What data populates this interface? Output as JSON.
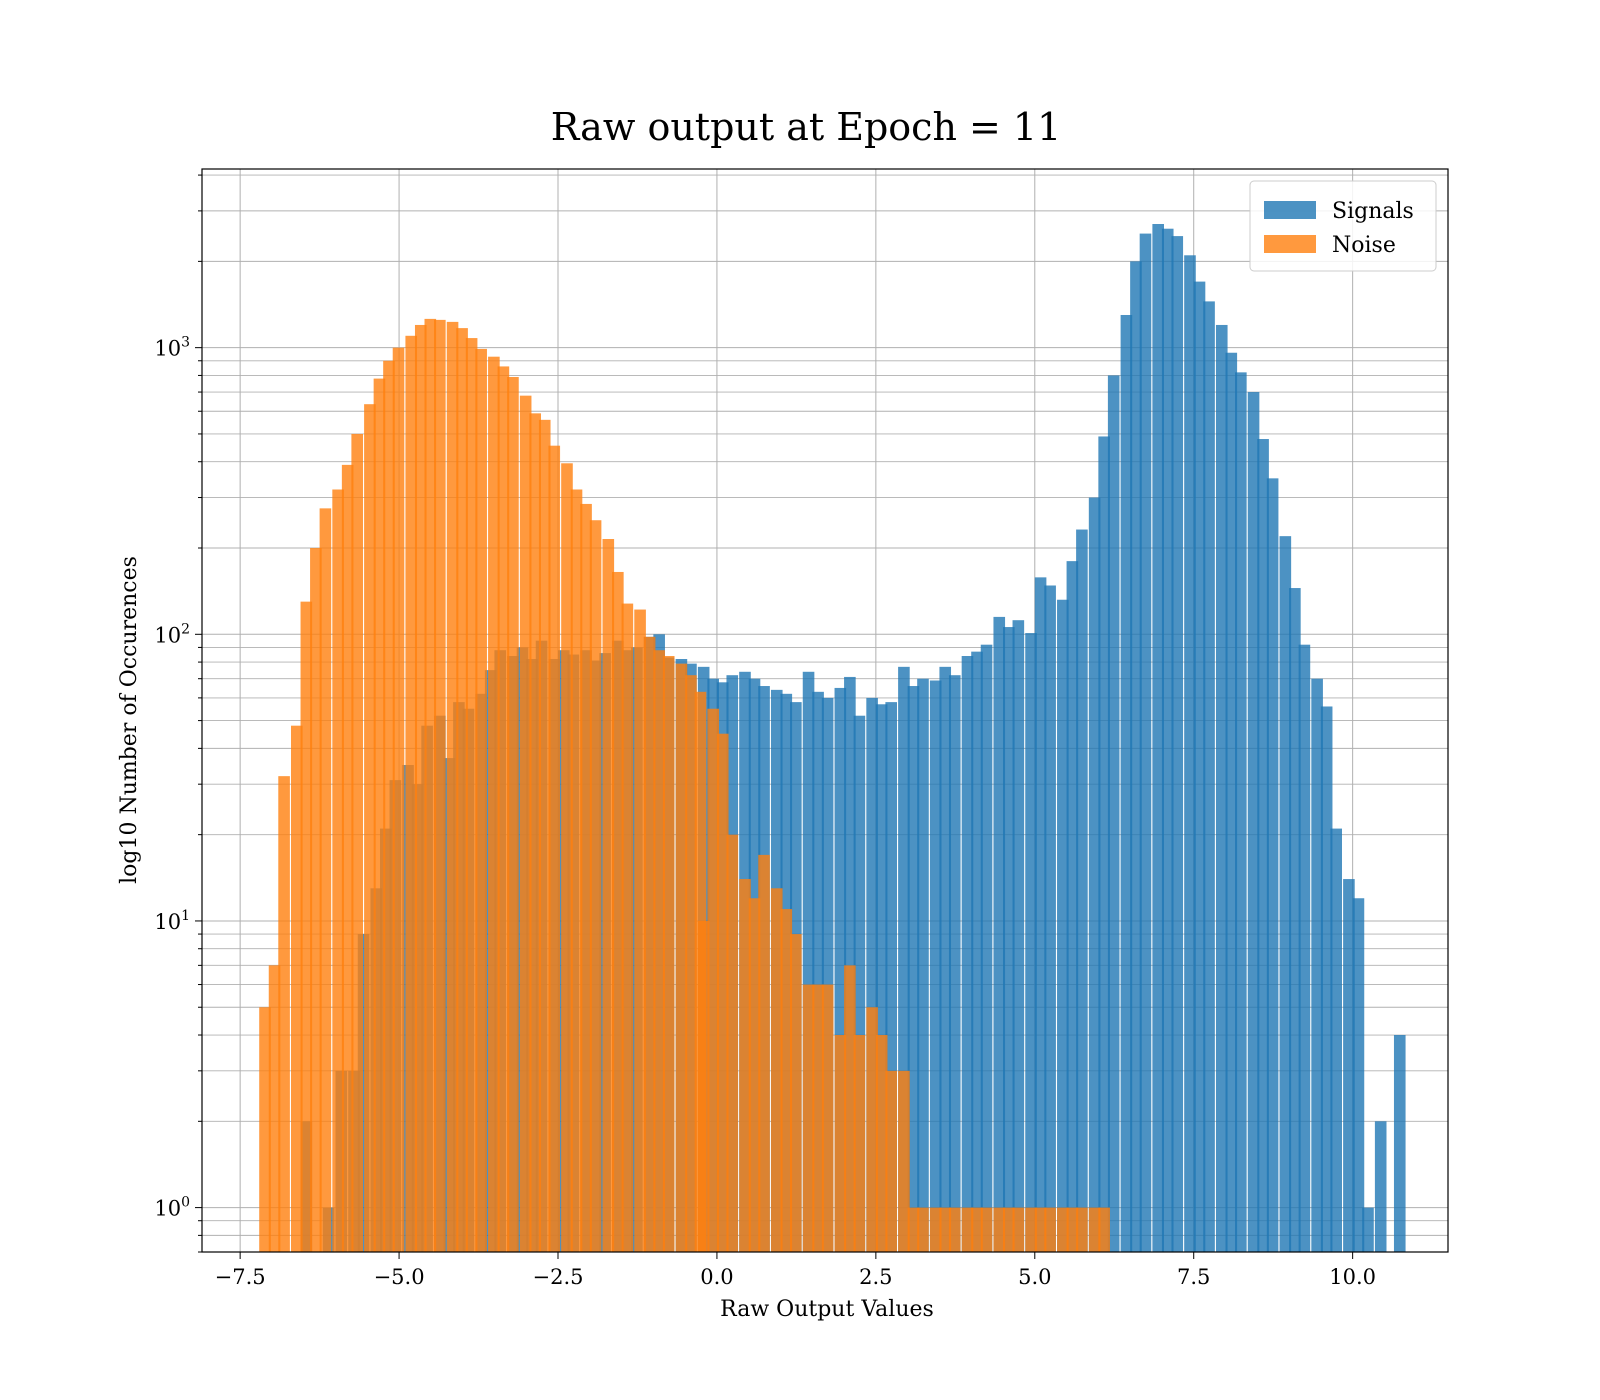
{
  "chart_data": {
    "type": "bar",
    "title": "Raw output at Epoch = 11",
    "xlabel": "Raw Output Values",
    "ylabel": "log10 Number of Occurences",
    "xlim": [
      -8.1,
      11.5
    ],
    "ylim": [
      0.7,
      4200
    ],
    "y_scale": "log",
    "grid": true,
    "legend_position": "top-right",
    "bin_width": 0.1825,
    "x_ticks": [
      {
        "value": -7.5,
        "label": "−7.5"
      },
      {
        "value": -5.0,
        "label": "−5.0"
      },
      {
        "value": -2.5,
        "label": "−2.5"
      },
      {
        "value": 0.0,
        "label": "0.0"
      },
      {
        "value": 2.5,
        "label": "2.5"
      },
      {
        "value": 5.0,
        "label": "5.0"
      },
      {
        "value": 7.5,
        "label": "7.5"
      },
      {
        "value": 10.0,
        "label": "10.0"
      }
    ],
    "y_ticks": [
      {
        "value": 1,
        "base": "10",
        "exp": "0"
      },
      {
        "value": 10,
        "base": "10",
        "exp": "1"
      },
      {
        "value": 100,
        "base": "10",
        "exp": "2"
      },
      {
        "value": 1000,
        "base": "10",
        "exp": "3"
      }
    ],
    "series": [
      {
        "name": "Signals",
        "color": "#1f77b4",
        "opacity": 0.8,
        "bins": [
          [
            -6.55,
            2
          ],
          [
            -6.2,
            1
          ],
          [
            -6.0,
            3
          ],
          [
            -5.8,
            3
          ],
          [
            -5.65,
            9
          ],
          [
            -5.45,
            13
          ],
          [
            -5.3,
            21
          ],
          [
            -5.15,
            31
          ],
          [
            -4.95,
            35
          ],
          [
            -4.8,
            30
          ],
          [
            -4.65,
            48
          ],
          [
            -4.45,
            52
          ],
          [
            -4.3,
            37
          ],
          [
            -4.15,
            58
          ],
          [
            -4.0,
            55
          ],
          [
            -3.8,
            62
          ],
          [
            -3.65,
            75
          ],
          [
            -3.5,
            88
          ],
          [
            -3.3,
            84
          ],
          [
            -3.15,
            90
          ],
          [
            -3.0,
            82
          ],
          [
            -2.85,
            95
          ],
          [
            -2.65,
            82
          ],
          [
            -2.5,
            88
          ],
          [
            -2.35,
            85
          ],
          [
            -2.15,
            88
          ],
          [
            -2.0,
            81
          ],
          [
            -1.85,
            86
          ],
          [
            -1.65,
            95
          ],
          [
            -1.5,
            88
          ],
          [
            -1.35,
            90
          ],
          [
            -1.15,
            98
          ],
          [
            -1.0,
            100
          ],
          [
            -0.85,
            83
          ],
          [
            -0.65,
            82
          ],
          [
            -0.5,
            79
          ],
          [
            -0.3,
            77
          ],
          [
            -0.15,
            70
          ],
          [
            0.0,
            68
          ],
          [
            0.15,
            72
          ],
          [
            0.35,
            74
          ],
          [
            0.5,
            70
          ],
          [
            0.65,
            66
          ],
          [
            0.85,
            64
          ],
          [
            1.0,
            62
          ],
          [
            1.15,
            58
          ],
          [
            1.35,
            74
          ],
          [
            1.5,
            63
          ],
          [
            1.65,
            60
          ],
          [
            1.85,
            65
          ],
          [
            2.0,
            71
          ],
          [
            2.15,
            52
          ],
          [
            2.35,
            60
          ],
          [
            2.5,
            57
          ],
          [
            2.65,
            58
          ],
          [
            2.85,
            77
          ],
          [
            3.0,
            66
          ],
          [
            3.15,
            70
          ],
          [
            3.35,
            69
          ],
          [
            3.5,
            77
          ],
          [
            3.65,
            72
          ],
          [
            3.85,
            84
          ],
          [
            4.0,
            87
          ],
          [
            4.15,
            92
          ],
          [
            4.35,
            115
          ],
          [
            4.5,
            106
          ],
          [
            4.65,
            112
          ],
          [
            4.85,
            101
          ],
          [
            5.0,
            158
          ],
          [
            5.15,
            148
          ],
          [
            5.35,
            132
          ],
          [
            5.5,
            180
          ],
          [
            5.65,
            232
          ],
          [
            5.85,
            300
          ],
          [
            6.0,
            490
          ],
          [
            6.15,
            800
          ],
          [
            6.35,
            1300
          ],
          [
            6.5,
            2000
          ],
          [
            6.65,
            2500
          ],
          [
            6.85,
            2700
          ],
          [
            7.0,
            2600
          ],
          [
            7.15,
            2450
          ],
          [
            7.35,
            2100
          ],
          [
            7.5,
            1700
          ],
          [
            7.65,
            1450
          ],
          [
            7.85,
            1200
          ],
          [
            8.0,
            960
          ],
          [
            8.15,
            820
          ],
          [
            8.35,
            700
          ],
          [
            8.5,
            480
          ],
          [
            8.65,
            350
          ],
          [
            8.85,
            220
          ],
          [
            9.0,
            145
          ],
          [
            9.15,
            92
          ],
          [
            9.35,
            70
          ],
          [
            9.5,
            56
          ],
          [
            9.65,
            21
          ],
          [
            9.85,
            14
          ],
          [
            10.0,
            12
          ],
          [
            10.15,
            1
          ],
          [
            10.35,
            2
          ],
          [
            10.65,
            4
          ]
        ]
      },
      {
        "name": "Noise",
        "color": "#ff7f0e",
        "opacity": 0.8,
        "bins": [
          [
            -7.2,
            5
          ],
          [
            -7.05,
            7
          ],
          [
            -6.9,
            32
          ],
          [
            -6.7,
            48
          ],
          [
            -6.55,
            130
          ],
          [
            -6.4,
            200
          ],
          [
            -6.25,
            275
          ],
          [
            -6.05,
            320
          ],
          [
            -5.9,
            390
          ],
          [
            -5.75,
            500
          ],
          [
            -5.55,
            635
          ],
          [
            -5.4,
            780
          ],
          [
            -5.25,
            900
          ],
          [
            -5.1,
            1000
          ],
          [
            -4.9,
            1100
          ],
          [
            -4.75,
            1200
          ],
          [
            -4.6,
            1260
          ],
          [
            -4.45,
            1250
          ],
          [
            -4.25,
            1230
          ],
          [
            -4.1,
            1170
          ],
          [
            -3.95,
            1080
          ],
          [
            -3.8,
            990
          ],
          [
            -3.6,
            930
          ],
          [
            -3.45,
            860
          ],
          [
            -3.3,
            790
          ],
          [
            -3.1,
            680
          ],
          [
            -2.95,
            590
          ],
          [
            -2.8,
            560
          ],
          [
            -2.65,
            455
          ],
          [
            -2.45,
            395
          ],
          [
            -2.3,
            320
          ],
          [
            -2.15,
            285
          ],
          [
            -2.0,
            250
          ],
          [
            -1.8,
            215
          ],
          [
            -1.65,
            165
          ],
          [
            -1.5,
            128
          ],
          [
            -1.3,
            122
          ],
          [
            -1.15,
            98
          ],
          [
            -1.0,
            88
          ],
          [
            -0.85,
            84
          ],
          [
            -0.65,
            79
          ],
          [
            -0.5,
            72
          ],
          [
            -0.35,
            63
          ],
          [
            -0.15,
            55
          ],
          [
            0.0,
            45
          ],
          [
            -0.3,
            10
          ],
          [
            0.15,
            20
          ],
          [
            0.35,
            14
          ],
          [
            0.5,
            12
          ],
          [
            0.65,
            17
          ],
          [
            0.85,
            13
          ],
          [
            1.0,
            11
          ],
          [
            1.15,
            9
          ],
          [
            1.35,
            6
          ],
          [
            1.5,
            6
          ],
          [
            1.65,
            6
          ],
          [
            1.85,
            4
          ],
          [
            2.0,
            7
          ],
          [
            2.15,
            4
          ],
          [
            2.35,
            5
          ],
          [
            2.5,
            4
          ],
          [
            2.65,
            3
          ],
          [
            2.85,
            3
          ],
          [
            3.0,
            1
          ],
          [
            3.15,
            1
          ],
          [
            3.35,
            1
          ],
          [
            3.5,
            1
          ],
          [
            3.65,
            1
          ],
          [
            3.85,
            1
          ],
          [
            4.0,
            1
          ],
          [
            4.15,
            1
          ],
          [
            4.35,
            1
          ],
          [
            4.5,
            1
          ],
          [
            4.65,
            1
          ],
          [
            4.85,
            1
          ],
          [
            5.0,
            1
          ],
          [
            5.15,
            1
          ],
          [
            5.35,
            1
          ],
          [
            5.5,
            1
          ],
          [
            5.65,
            1
          ],
          [
            5.85,
            1
          ],
          [
            6.0,
            1
          ]
        ]
      }
    ]
  }
}
